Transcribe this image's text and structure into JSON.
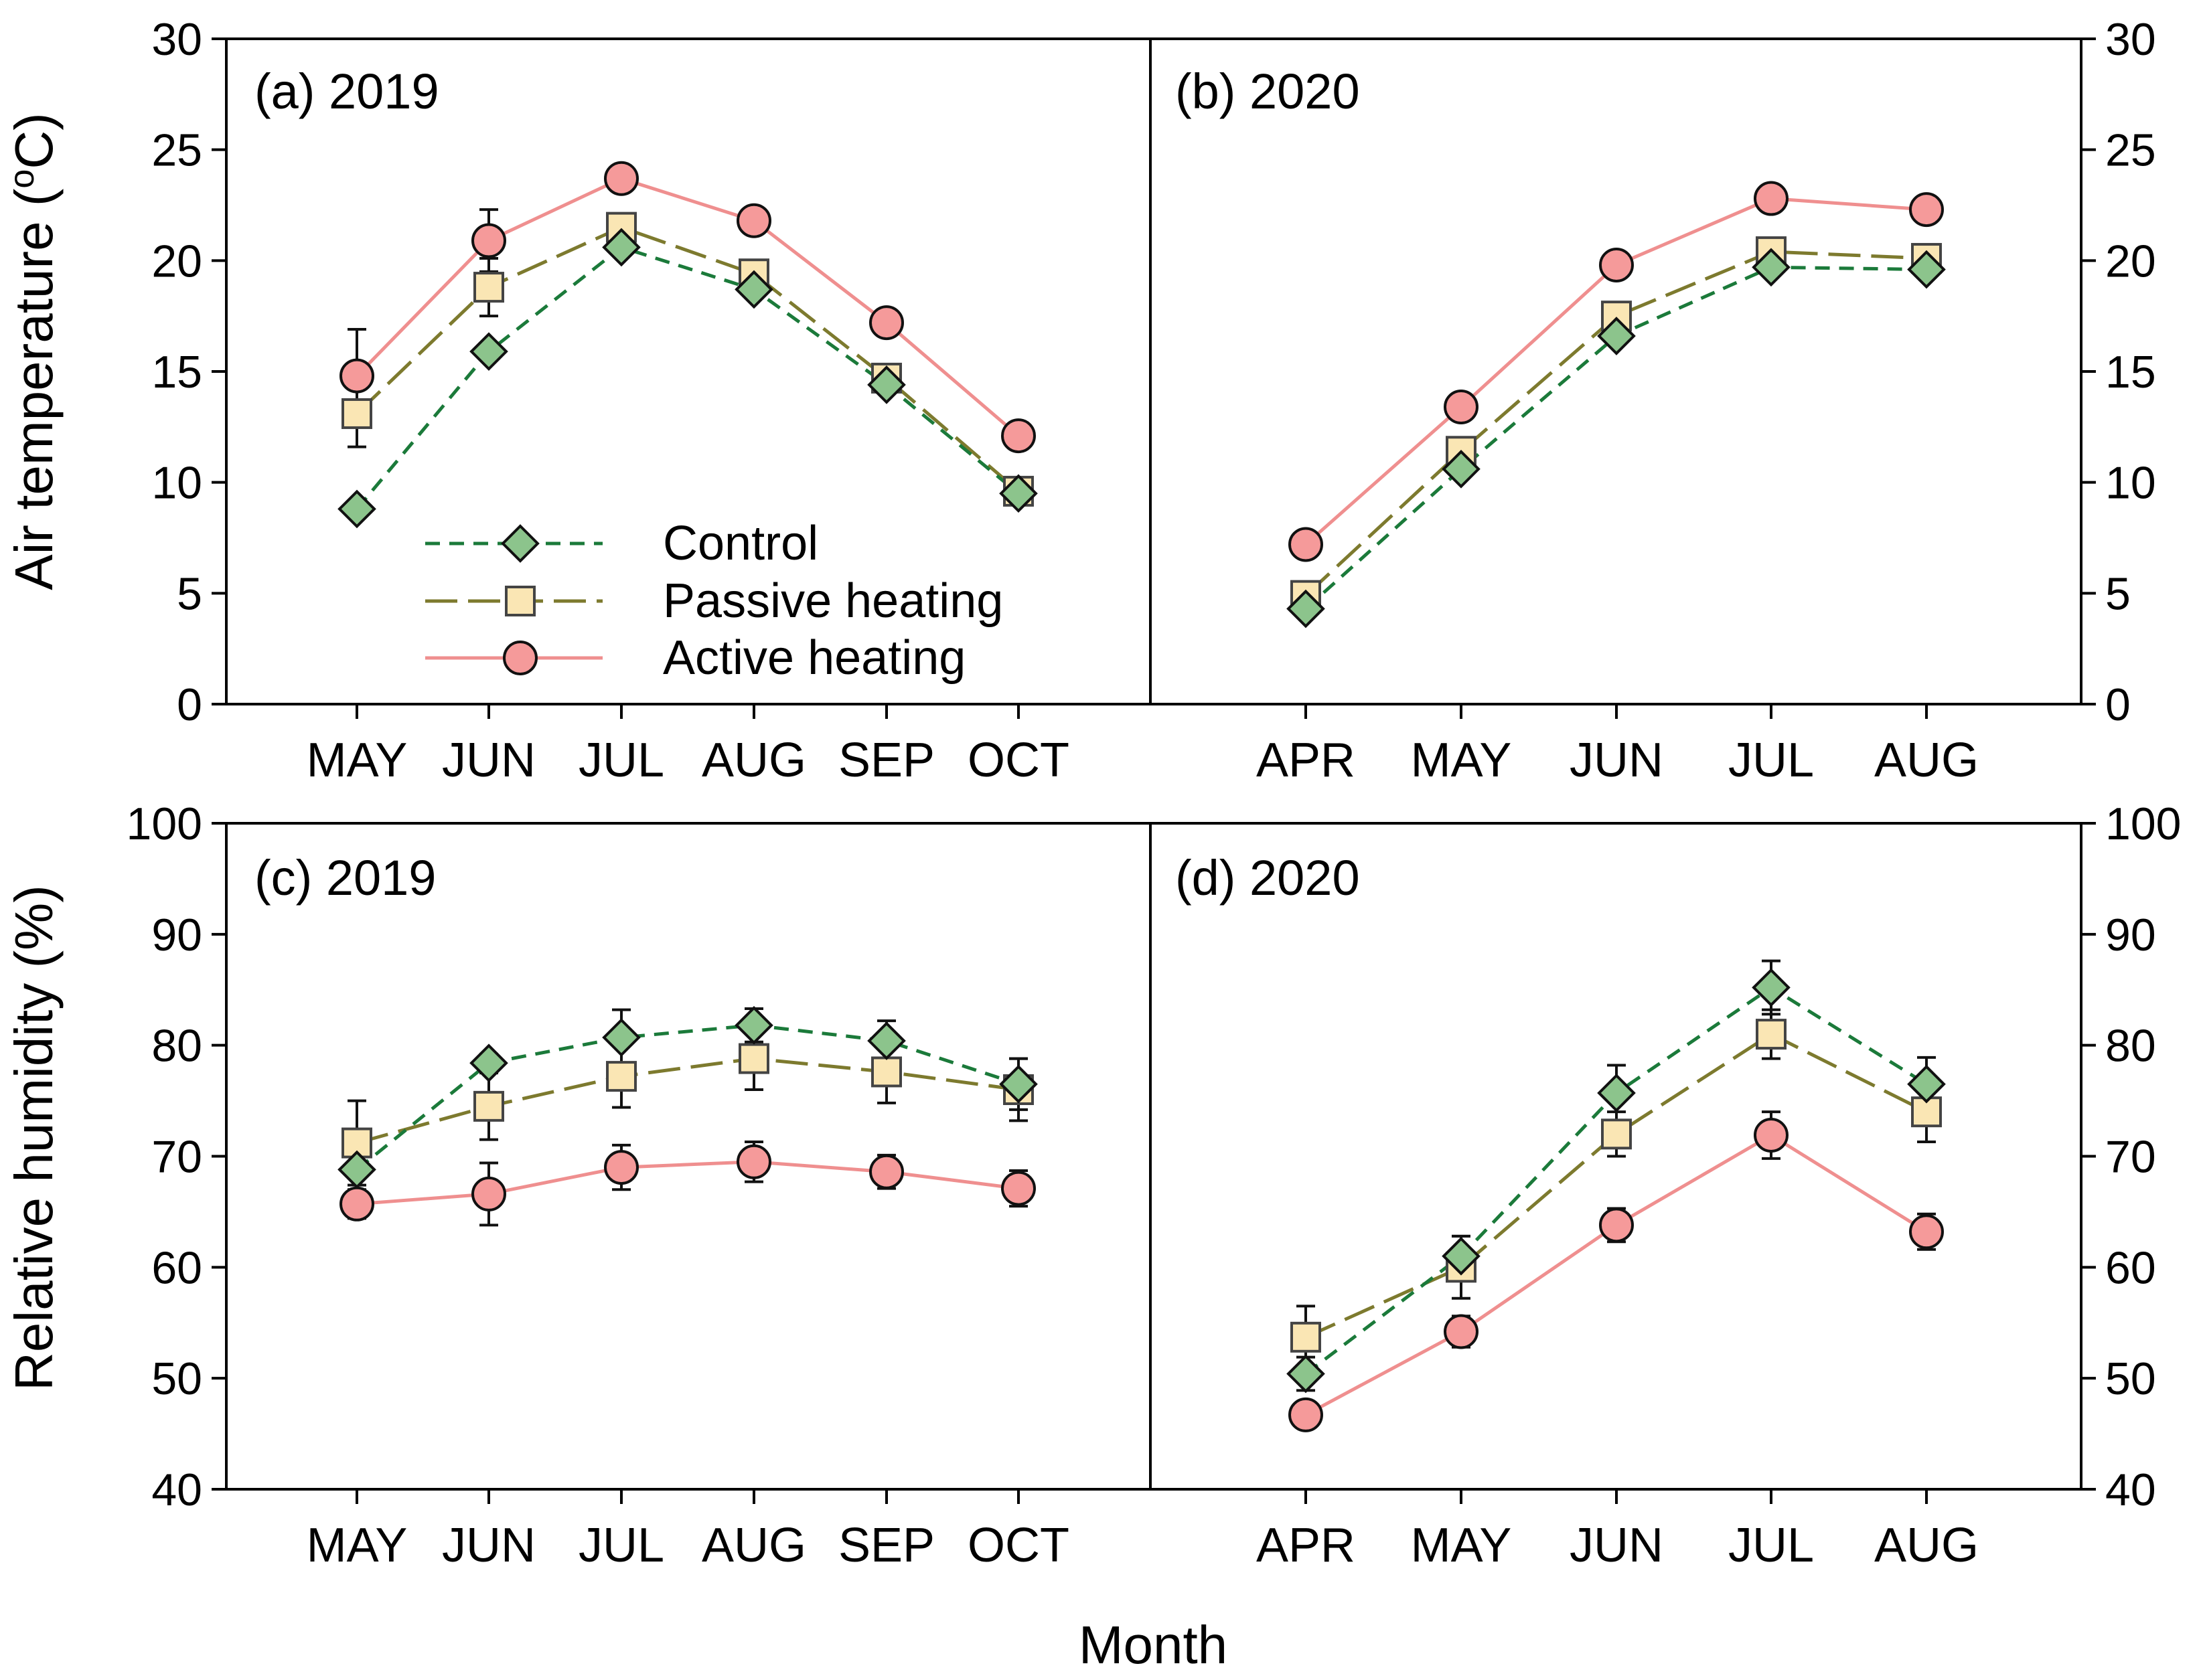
{
  "chart_data": [
    {
      "type": "line",
      "panel": "a",
      "title": "(a) 2019",
      "ylabel": "Air temperature (oC)",
      "ylim": [
        0,
        30
      ],
      "yticks": [
        0,
        5,
        10,
        15,
        20,
        25,
        30
      ],
      "categories": [
        "MAY",
        "JUN",
        "JUL",
        "AUG",
        "SEP",
        "OCT"
      ],
      "series": [
        {
          "name": "Control",
          "values": [
            8.8,
            15.9,
            20.6,
            18.7,
            14.4,
            9.5
          ],
          "errors": [
            0,
            0,
            0,
            0,
            0,
            0
          ]
        },
        {
          "name": "Passive heating",
          "values": [
            13.1,
            18.8,
            21.5,
            19.4,
            14.7,
            9.6
          ],
          "errors": [
            1.5,
            1.3,
            0,
            0,
            0,
            0
          ]
        },
        {
          "name": "Active heating",
          "values": [
            14.8,
            20.9,
            23.7,
            21.8,
            17.2,
            12.1
          ],
          "errors": [
            2.1,
            1.4,
            0,
            0,
            0,
            0
          ]
        }
      ]
    },
    {
      "type": "line",
      "panel": "b",
      "title": "(b) 2020",
      "ylim": [
        0,
        30
      ],
      "yticks": [
        0,
        5,
        10,
        15,
        20,
        25,
        30
      ],
      "categories": [
        "APR",
        "MAY",
        "JUN",
        "JUL",
        "AUG"
      ],
      "series": [
        {
          "name": "Control",
          "values": [
            4.3,
            10.6,
            16.6,
            19.7,
            19.6
          ],
          "errors": [
            0,
            0,
            0,
            0,
            0
          ]
        },
        {
          "name": "Passive heating",
          "values": [
            4.9,
            11.4,
            17.5,
            20.4,
            20.1
          ],
          "errors": [
            0,
            0,
            0,
            0,
            0
          ]
        },
        {
          "name": "Active heating",
          "values": [
            7.2,
            13.4,
            19.8,
            22.8,
            22.3
          ],
          "errors": [
            0,
            0,
            0,
            0,
            0
          ]
        }
      ]
    },
    {
      "type": "line",
      "panel": "c",
      "title": "(c) 2019",
      "ylabel": "Relative humidity (%)",
      "ylim": [
        40,
        100
      ],
      "yticks": [
        40,
        50,
        60,
        70,
        80,
        90,
        100
      ],
      "categories": [
        "MAY",
        "JUN",
        "JUL",
        "AUG",
        "SEP",
        "OCT"
      ],
      "series": [
        {
          "name": "Control",
          "values": [
            68.8,
            78.4,
            80.7,
            81.8,
            80.4,
            76.5
          ],
          "errors": [
            2.0,
            0.8,
            2.5,
            1.5,
            1.8,
            2.3
          ]
        },
        {
          "name": "Passive heating",
          "values": [
            71.2,
            74.5,
            77.2,
            78.8,
            77.6,
            76.0
          ],
          "errors": [
            3.8,
            3.0,
            2.8,
            2.8,
            2.8,
            2.8
          ]
        },
        {
          "name": "Active heating",
          "values": [
            65.7,
            66.6,
            69.0,
            69.5,
            68.6,
            67.1
          ],
          "errors": [
            1.3,
            2.8,
            2.0,
            1.8,
            1.5,
            1.6
          ]
        }
      ]
    },
    {
      "type": "line",
      "panel": "d",
      "title": "(d) 2020",
      "ylim": [
        40,
        100
      ],
      "yticks": [
        40,
        50,
        60,
        70,
        80,
        90,
        100
      ],
      "categories": [
        "APR",
        "MAY",
        "JUN",
        "JUL",
        "AUG"
      ],
      "series": [
        {
          "name": "Control",
          "values": [
            50.4,
            61.0,
            75.7,
            85.2,
            76.5
          ],
          "errors": [
            1.5,
            1.8,
            2.5,
            2.4,
            2.4
          ]
        },
        {
          "name": "Passive heating",
          "values": [
            53.7,
            60.0,
            72.0,
            81.0,
            74.0
          ],
          "errors": [
            2.8,
            2.8,
            2.0,
            2.2,
            2.7
          ]
        },
        {
          "name": "Active heating",
          "values": [
            46.7,
            54.2,
            63.8,
            71.9,
            63.2
          ],
          "errors": [
            0,
            1.4,
            1.5,
            2.1,
            1.6
          ]
        }
      ]
    }
  ],
  "xlabel": "Month",
  "legend": {
    "position": "inside-bottom-center-of-panel-a",
    "entries": [
      "Control",
      "Passive heating",
      "Active heating"
    ]
  },
  "styles": {
    "Control": {
      "line": "#1b7a3a",
      "fill": "#8cc48c",
      "marker": "diamond",
      "dash": "dashed-short"
    },
    "Passive heating": {
      "line": "#7d7a2e",
      "fill": "#fae6b4",
      "marker": "square",
      "dash": "dashed-long"
    },
    "Active heating": {
      "line": "#ef8f8f",
      "fill": "#f59a9a",
      "marker": "circle",
      "dash": "solid"
    }
  }
}
